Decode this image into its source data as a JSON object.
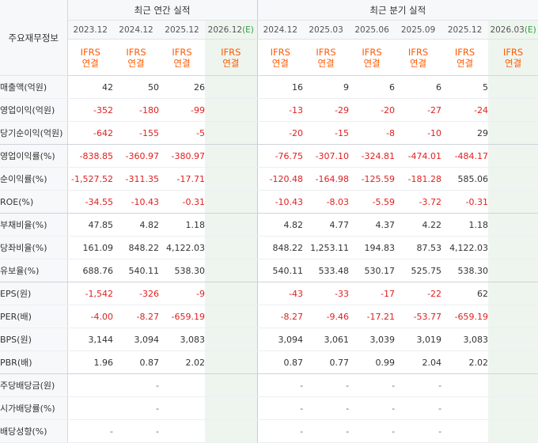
{
  "corner_label": "주요재무정보",
  "groups": {
    "annual": "최근 연간 실적",
    "quarterly": "최근 분기 실적"
  },
  "annual_periods": [
    "2023.12",
    "2024.12",
    "2025.12"
  ],
  "annual_estimate_period": {
    "date": "2026.12",
    "marker": "(E)"
  },
  "quarterly_periods": [
    "2024.12",
    "2025.03",
    "2025.06",
    "2025.09",
    "2025.12"
  ],
  "quarterly_estimate_period": {
    "date": "2026.03",
    "marker": "(E)"
  },
  "basis": {
    "line1": "IFRS",
    "line2": "연결"
  },
  "rows": [
    {
      "label": "매출액(억원)",
      "annual": [
        "42",
        "50",
        "26",
        ""
      ],
      "quarterly": [
        "16",
        "9",
        "6",
        "6",
        "5",
        ""
      ]
    },
    {
      "label": "영업이익(억원)",
      "annual": [
        "-352",
        "-180",
        "-99",
        ""
      ],
      "quarterly": [
        "-13",
        "-29",
        "-20",
        "-27",
        "-24",
        ""
      ]
    },
    {
      "label": "당기순이익(억원)",
      "annual": [
        "-642",
        "-155",
        "-5",
        ""
      ],
      "quarterly": [
        "-20",
        "-15",
        "-8",
        "-10",
        "29",
        ""
      ],
      "group_end": true
    },
    {
      "label": "영업이익률(%)",
      "annual": [
        "-838.85",
        "-360.97",
        "-380.97",
        ""
      ],
      "quarterly": [
        "-76.75",
        "-307.10",
        "-324.81",
        "-474.01",
        "-484.17",
        ""
      ]
    },
    {
      "label": "순이익률(%)",
      "annual": [
        "-1,527.52",
        "-311.35",
        "-17.71",
        ""
      ],
      "quarterly": [
        "-120.48",
        "-164.98",
        "-125.59",
        "-181.28",
        "585.06",
        ""
      ]
    },
    {
      "label": "ROE(%)",
      "annual": [
        "-34.55",
        "-10.43",
        "-0.31",
        ""
      ],
      "quarterly": [
        "-10.43",
        "-8.03",
        "-5.59",
        "-3.72",
        "-0.31",
        ""
      ],
      "group_end": true
    },
    {
      "label": "부채비율(%)",
      "annual": [
        "47.85",
        "4.82",
        "1.18",
        ""
      ],
      "quarterly": [
        "4.82",
        "4.77",
        "4.37",
        "4.22",
        "1.18",
        ""
      ]
    },
    {
      "label": "당좌비율(%)",
      "annual": [
        "161.09",
        "848.22",
        "4,122.03",
        ""
      ],
      "quarterly": [
        "848.22",
        "1,253.11",
        "194.83",
        "87.53",
        "4,122.03",
        ""
      ]
    },
    {
      "label": "유보율(%)",
      "annual": [
        "688.76",
        "540.11",
        "538.30",
        ""
      ],
      "quarterly": [
        "540.11",
        "533.48",
        "530.17",
        "525.75",
        "538.30",
        ""
      ],
      "group_end": true
    },
    {
      "label": "EPS(원)",
      "annual": [
        "-1,542",
        "-326",
        "-9",
        ""
      ],
      "quarterly": [
        "-43",
        "-33",
        "-17",
        "-22",
        "62",
        ""
      ]
    },
    {
      "label": "PER(배)",
      "annual": [
        "-4.00",
        "-8.27",
        "-659.19",
        ""
      ],
      "quarterly": [
        "-8.27",
        "-9.46",
        "-17.21",
        "-53.77",
        "-659.19",
        ""
      ]
    },
    {
      "label": "BPS(원)",
      "annual": [
        "3,144",
        "3,094",
        "3,083",
        ""
      ],
      "quarterly": [
        "3,094",
        "3,061",
        "3,039",
        "3,019",
        "3,083",
        ""
      ]
    },
    {
      "label": "PBR(배)",
      "annual": [
        "1.96",
        "0.87",
        "2.02",
        ""
      ],
      "quarterly": [
        "0.87",
        "0.77",
        "0.99",
        "2.04",
        "2.02",
        ""
      ],
      "group_end": true
    },
    {
      "label": "주당배당금(원)",
      "annual": [
        "",
        "-",
        "",
        ""
      ],
      "quarterly": [
        "-",
        "-",
        "-",
        "-",
        "",
        ""
      ]
    },
    {
      "label": "시가배당률(%)",
      "annual": [
        "",
        "-",
        "",
        ""
      ],
      "quarterly": [
        "-",
        "-",
        "-",
        "-",
        "",
        ""
      ]
    },
    {
      "label": "배당성향(%)",
      "annual": [
        "-",
        "-",
        "",
        ""
      ],
      "quarterly": [
        "-",
        "-",
        "-",
        "-",
        "",
        ""
      ]
    }
  ]
}
